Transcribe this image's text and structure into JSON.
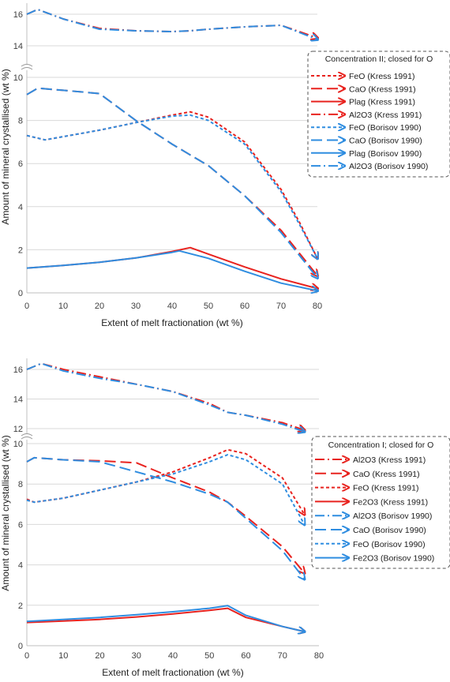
{
  "chart_data": [
    {
      "type": "line",
      "legend_title": "Concentration II; closed  for O",
      "xlabel": "Extent of melt fractionation (wt %)",
      "ylabel": "Amount of mineral crystallised (wt %)",
      "xlim": [
        0,
        80
      ],
      "ylim_lower": [
        0,
        10
      ],
      "ylim_upper": [
        14,
        16
      ],
      "x_ticks": [
        0,
        10,
        20,
        30,
        40,
        50,
        60,
        70,
        80
      ],
      "y_ticks_lower": [
        0,
        2,
        4,
        6,
        8,
        10
      ],
      "y_ticks_upper": [
        14,
        16
      ],
      "grid": true,
      "broken_y_axis": true,
      "legend_position": "right",
      "series": [
        {
          "name": "FeO (Kress 1991)",
          "color": "#e8231f",
          "dash": "short",
          "x": [
            0,
            5,
            10,
            20,
            30,
            40,
            45,
            50,
            60,
            70,
            75,
            80
          ],
          "y": [
            7.3,
            7.1,
            7.25,
            7.55,
            7.9,
            8.25,
            8.4,
            8.15,
            7.0,
            4.8,
            3.3,
            1.6
          ]
        },
        {
          "name": "CaO (Kress 1991)",
          "color": "#e8231f",
          "dash": "long",
          "x": [
            0,
            3,
            10,
            20,
            30,
            40,
            45,
            50,
            60,
            70,
            80
          ],
          "y": [
            9.2,
            9.5,
            9.4,
            9.25,
            8.0,
            6.9,
            6.4,
            5.9,
            4.5,
            2.9,
            0.8
          ]
        },
        {
          "name": "Plag (Kress 1991)",
          "color": "#e8231f",
          "dash": "solid",
          "x": [
            0,
            10,
            20,
            30,
            40,
            45,
            50,
            60,
            70,
            80
          ],
          "y": [
            1.15,
            1.27,
            1.42,
            1.62,
            1.92,
            2.1,
            1.8,
            1.2,
            0.65,
            0.2
          ]
        },
        {
          "name": "Al2O3 (Kress 1991)",
          "color": "#e8231f",
          "dash": "dashdot",
          "x": [
            0,
            3,
            10,
            20,
            30,
            40,
            45,
            50,
            60,
            70,
            80
          ],
          "y": [
            16.0,
            16.3,
            15.7,
            15.1,
            14.95,
            14.9,
            14.95,
            15.05,
            15.2,
            15.3,
            14.5
          ]
        },
        {
          "name": "FeO (Borisov 1990)",
          "color": "#2f8de0",
          "dash": "short",
          "x": [
            0,
            5,
            10,
            20,
            30,
            40,
            45,
            50,
            60,
            70,
            75,
            80
          ],
          "y": [
            7.3,
            7.1,
            7.25,
            7.55,
            7.9,
            8.2,
            8.25,
            8.0,
            6.9,
            4.7,
            3.2,
            1.6
          ]
        },
        {
          "name": "CaO (Borisov 1990)",
          "color": "#2f8de0",
          "dash": "long",
          "x": [
            0,
            3,
            10,
            20,
            30,
            40,
            45,
            50,
            60,
            70,
            80
          ],
          "y": [
            9.2,
            9.5,
            9.4,
            9.25,
            8.0,
            6.9,
            6.4,
            5.9,
            4.5,
            2.8,
            0.7
          ]
        },
        {
          "name": "Plag (Borisov 1990)",
          "color": "#2f8de0",
          "dash": "solid",
          "x": [
            0,
            10,
            20,
            30,
            40,
            42,
            50,
            60,
            70,
            80
          ],
          "y": [
            1.15,
            1.27,
            1.42,
            1.62,
            1.88,
            1.95,
            1.6,
            1.0,
            0.45,
            0.1
          ]
        },
        {
          "name": "Al2O3 (Borisov 1990)",
          "color": "#2f8de0",
          "dash": "dashdot",
          "x": [
            0,
            3,
            10,
            20,
            30,
            40,
            45,
            50,
            60,
            70,
            80
          ],
          "y": [
            16.0,
            16.3,
            15.7,
            15.05,
            14.95,
            14.9,
            14.95,
            15.05,
            15.2,
            15.3,
            14.4
          ]
        }
      ]
    },
    {
      "type": "line",
      "legend_title": "Concentration I; closed  for O",
      "xlabel": "Extent of melt fractionation (wt %)",
      "ylabel": "Amount of mineral crystallised (wt %)",
      "xlim": [
        0,
        80
      ],
      "ylim_lower": [
        0,
        10
      ],
      "ylim_upper": [
        12,
        16
      ],
      "x_ticks": [
        0,
        10,
        20,
        30,
        40,
        50,
        60,
        70,
        80
      ],
      "y_ticks_lower": [
        0,
        2,
        4,
        6,
        8,
        10
      ],
      "y_ticks_upper": [
        12,
        14,
        16
      ],
      "grid": true,
      "broken_y_axis": true,
      "legend_position": "right",
      "series": [
        {
          "name": "Al2O3 (Kress 1991)",
          "color": "#e8231f",
          "dash": "dashdot",
          "x": [
            0,
            4,
            10,
            20,
            30,
            40,
            50,
            55,
            60,
            70,
            76
          ],
          "y": [
            16.0,
            16.4,
            16.0,
            15.5,
            15.0,
            14.5,
            13.7,
            13.1,
            12.9,
            12.4,
            11.9
          ]
        },
        {
          "name": "CaO (Kress 1991)",
          "color": "#e8231f",
          "dash": "long",
          "x": [
            0,
            2,
            10,
            20,
            30,
            40,
            50,
            55,
            60,
            70,
            76
          ],
          "y": [
            9.1,
            9.3,
            9.2,
            9.15,
            9.05,
            8.3,
            7.6,
            7.1,
            6.4,
            4.9,
            3.6
          ]
        },
        {
          "name": "FeO (Kress 1991)",
          "color": "#e8231f",
          "dash": "short",
          "x": [
            0,
            2,
            10,
            20,
            30,
            40,
            50,
            55,
            60,
            70,
            76
          ],
          "y": [
            7.25,
            7.1,
            7.3,
            7.7,
            8.1,
            8.6,
            9.3,
            9.7,
            9.5,
            8.3,
            6.5
          ]
        },
        {
          "name": "Fe2O3 (Kress 1991)",
          "color": "#e8231f",
          "dash": "solid",
          "x": [
            0,
            10,
            20,
            30,
            40,
            50,
            55,
            60,
            70,
            76
          ],
          "y": [
            1.15,
            1.22,
            1.3,
            1.42,
            1.57,
            1.75,
            1.85,
            1.4,
            0.95,
            0.7
          ]
        },
        {
          "name": "Al2O3 (Borisov 1990)",
          "color": "#2f8de0",
          "dash": "dashdot",
          "x": [
            0,
            4,
            10,
            20,
            30,
            40,
            50,
            55,
            60,
            70,
            76
          ],
          "y": [
            16.0,
            16.4,
            15.9,
            15.4,
            15.0,
            14.5,
            13.6,
            13.1,
            12.9,
            12.3,
            11.8
          ]
        },
        {
          "name": "CaO (Borisov 1990)",
          "color": "#2f8de0",
          "dash": "long",
          "x": [
            0,
            2,
            10,
            20,
            30,
            40,
            50,
            55,
            60,
            70,
            76
          ],
          "y": [
            9.1,
            9.3,
            9.2,
            9.1,
            8.6,
            8.1,
            7.5,
            7.1,
            6.3,
            4.7,
            3.3
          ]
        },
        {
          "name": "FeO (Borisov 1990)",
          "color": "#2f8de0",
          "dash": "short",
          "x": [
            0,
            2,
            10,
            20,
            30,
            40,
            50,
            55,
            60,
            70,
            76
          ],
          "y": [
            7.2,
            7.1,
            7.3,
            7.7,
            8.1,
            8.5,
            9.1,
            9.45,
            9.2,
            8.0,
            6.0
          ]
        },
        {
          "name": "Fe2O3 (Borisov 1990)",
          "color": "#2f8de0",
          "dash": "solid",
          "x": [
            0,
            10,
            20,
            30,
            40,
            50,
            55,
            60,
            70,
            76
          ],
          "y": [
            1.2,
            1.3,
            1.4,
            1.53,
            1.68,
            1.85,
            1.98,
            1.5,
            0.95,
            0.7
          ]
        }
      ]
    }
  ]
}
